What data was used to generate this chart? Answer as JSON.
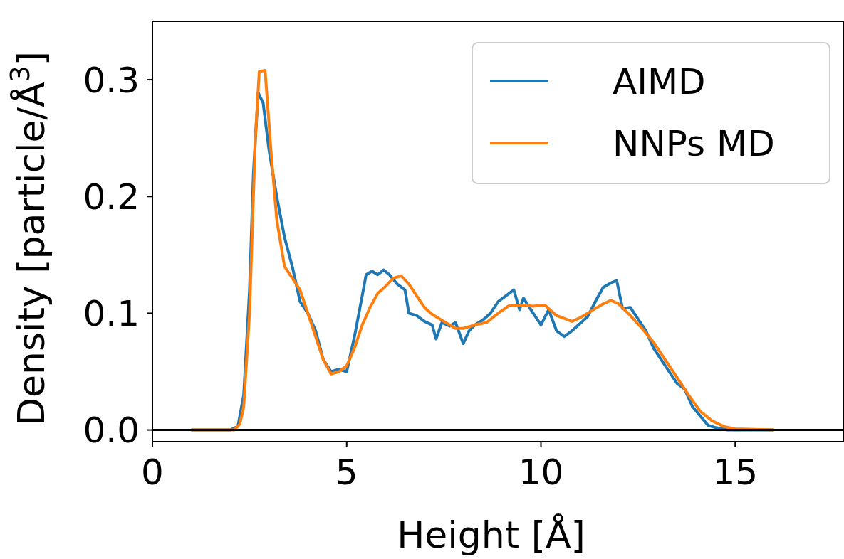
{
  "chart_data": {
    "type": "line",
    "xlabel": "Height [Å]",
    "ylabel": "Density [particle/Å$^{3}$]",
    "xlim": [
      0,
      17.8
    ],
    "ylim": [
      -0.01,
      0.35
    ],
    "xticks": [
      0,
      5,
      10,
      15
    ],
    "yticks": [
      {
        "value": 0,
        "label": "0.0"
      },
      0.1,
      0.2,
      0.3
    ],
    "legend": "top right",
    "grid": false,
    "ref_lines": [
      {
        "axis": "y",
        "value": 0,
        "color": "#000000"
      }
    ],
    "series": [
      {
        "name": "AIMD",
        "color": "#1f77b4",
        "x": [
          1,
          2,
          2.2,
          2.35,
          2.5,
          2.6,
          2.72,
          2.85,
          3,
          3.2,
          3.4,
          3.6,
          3.8,
          4,
          4.2,
          4.4,
          4.6,
          4.8,
          5,
          5.2,
          5.4,
          5.5,
          5.65,
          5.8,
          5.95,
          6.1,
          6.3,
          6.5,
          6.6,
          6.8,
          7,
          7.2,
          7.3,
          7.45,
          7.65,
          7.8,
          8,
          8.15,
          8.3,
          8.5,
          8.7,
          8.9,
          9.1,
          9.3,
          9.45,
          9.55,
          9.8,
          10,
          10.2,
          10.4,
          10.6,
          10.8,
          11,
          11.2,
          11.4,
          11.6,
          11.8,
          11.95,
          12.1,
          12.3,
          12.5,
          12.7,
          12.9,
          13.1,
          13.3,
          13.5,
          13.7,
          13.9,
          14.1,
          14.3,
          14.5,
          14.8,
          16
        ],
        "values": [
          0,
          0,
          0.003,
          0.03,
          0.12,
          0.22,
          0.289,
          0.28,
          0.24,
          0.2,
          0.165,
          0.14,
          0.11,
          0.1,
          0.085,
          0.06,
          0.05,
          0.052,
          0.05,
          0.08,
          0.115,
          0.133,
          0.136,
          0.133,
          0.137,
          0.133,
          0.125,
          0.12,
          0.1,
          0.098,
          0.093,
          0.09,
          0.078,
          0.092,
          0.089,
          0.092,
          0.074,
          0.085,
          0.09,
          0.094,
          0.1,
          0.11,
          0.115,
          0.12,
          0.103,
          0.113,
          0.1,
          0.09,
          0.103,
          0.085,
          0.08,
          0.085,
          0.091,
          0.097,
          0.11,
          0.122,
          0.126,
          0.128,
          0.104,
          0.105,
          0.095,
          0.085,
          0.07,
          0.06,
          0.05,
          0.04,
          0.035,
          0.02,
          0.012,
          0.004,
          0.002,
          0,
          0
        ]
      },
      {
        "name": "NNPs MD",
        "color": "#ff7f0e",
        "x": [
          1,
          2.1,
          2.25,
          2.35,
          2.5,
          2.65,
          2.75,
          2.9,
          3.05,
          3.2,
          3.4,
          3.6,
          3.8,
          4,
          4.2,
          4.4,
          4.6,
          4.8,
          5,
          5.2,
          5.4,
          5.6,
          5.8,
          6,
          6.2,
          6.4,
          6.6,
          6.8,
          7,
          7.2,
          7.5,
          7.8,
          8,
          8.3,
          8.6,
          8.9,
          9.2,
          9.5,
          9.8,
          10.1,
          10.4,
          10.8,
          11,
          11.3,
          11.6,
          11.8,
          12,
          12.3,
          12.6,
          12.9,
          13.2,
          13.5,
          13.8,
          14.1,
          14.4,
          14.7,
          15,
          16
        ],
        "values": [
          0,
          0,
          0.005,
          0.02,
          0.1,
          0.25,
          0.307,
          0.308,
          0.24,
          0.18,
          0.14,
          0.13,
          0.12,
          0.1,
          0.08,
          0.06,
          0.048,
          0.05,
          0.055,
          0.07,
          0.09,
          0.105,
          0.117,
          0.123,
          0.13,
          0.132,
          0.125,
          0.115,
          0.105,
          0.099,
          0.093,
          0.087,
          0.087,
          0.09,
          0.092,
          0.1,
          0.107,
          0.107,
          0.106,
          0.107,
          0.098,
          0.093,
          0.096,
          0.102,
          0.108,
          0.111,
          0.108,
          0.098,
          0.087,
          0.075,
          0.06,
          0.045,
          0.03,
          0.016,
          0.008,
          0.003,
          0.001,
          0
        ]
      }
    ]
  }
}
